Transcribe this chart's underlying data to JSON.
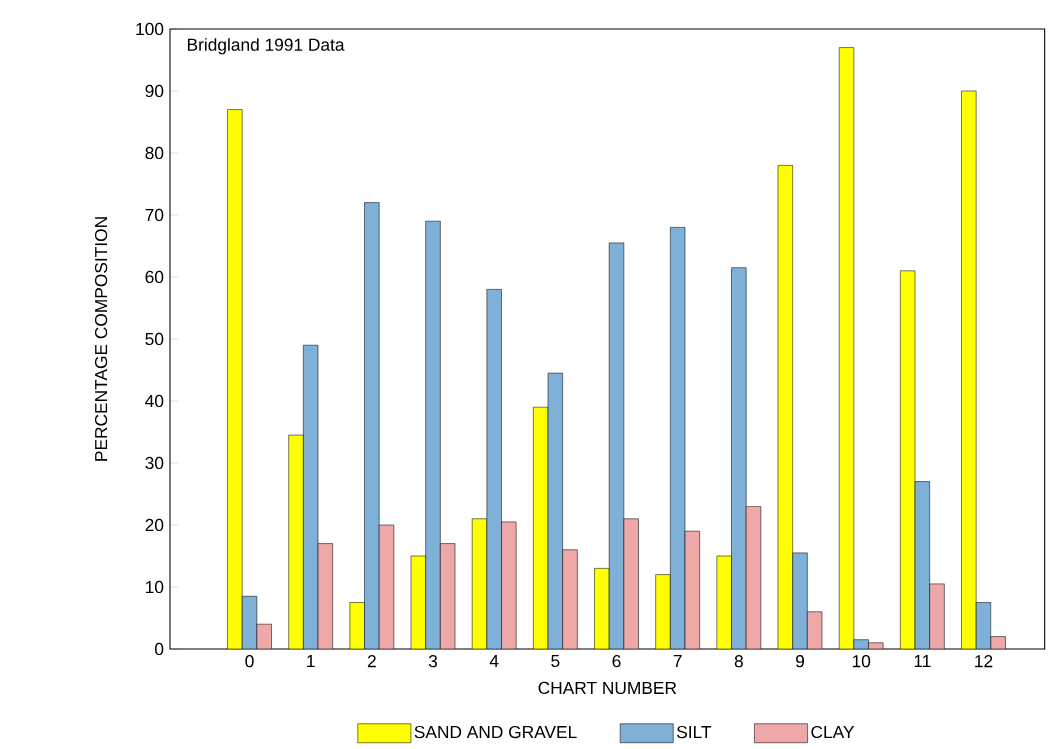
{
  "chart_data": {
    "type": "bar",
    "xlabel": "CHART NUMBER",
    "ylabel": "PERCENTAGE COMPOSITION",
    "annotations": [
      "Bridgland 1991 Data"
    ],
    "categories": [
      "0",
      "1",
      "2",
      "3",
      "4",
      "5",
      "6",
      "7",
      "8",
      "9",
      "10",
      "11",
      "12"
    ],
    "series": [
      {
        "name": "SAND AND GRAVEL",
        "color": "#ffff00",
        "values": [
          87,
          34.5,
          7.5,
          15,
          21,
          39,
          13,
          12,
          15,
          78,
          97,
          61,
          90
        ]
      },
      {
        "name": "SILT",
        "color": "#7fb0d8",
        "values": [
          8.5,
          49,
          72,
          69,
          58,
          44.5,
          65.5,
          68,
          61.5,
          15.5,
          1.5,
          27,
          7.5
        ]
      },
      {
        "name": "CLAY",
        "color": "#eea8a8",
        "values": [
          4,
          17,
          20,
          17,
          20.5,
          16,
          21,
          19,
          23,
          6,
          1,
          10.5,
          2
        ]
      }
    ],
    "ylim": [
      0,
      100
    ],
    "yticks": [
      0,
      10,
      20,
      30,
      40,
      50,
      60,
      70,
      80,
      90,
      100
    ],
    "legend": "bottom"
  }
}
